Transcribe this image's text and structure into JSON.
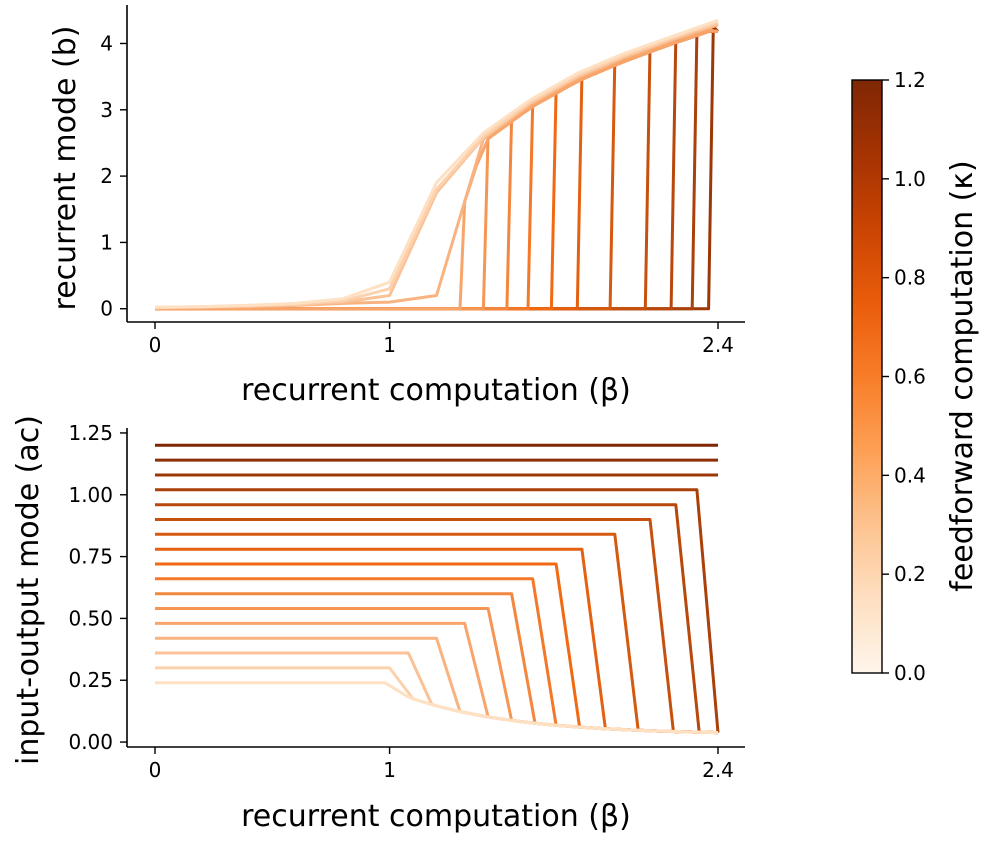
{
  "chart_data": [
    {
      "type": "line",
      "xlabel": "recurrent computation (β)",
      "ylabel": "recurrent mode (b)",
      "xlim": [
        0,
        2.4
      ],
      "ylim": [
        -0.2,
        4.55
      ],
      "xticks": [
        0,
        1,
        2.4
      ],
      "xtick_labels": [
        "0",
        "1",
        "2.4"
      ],
      "yticks": [
        0,
        1,
        2,
        3,
        4
      ],
      "ytick_labels": [
        "0",
        "1",
        "2",
        "3",
        "4"
      ],
      "grid": false,
      "x": [
        0,
        0.2,
        0.4,
        0.6,
        0.8,
        1.0,
        1.2,
        1.4,
        1.6,
        1.8,
        2.0,
        2.2,
        2.4
      ],
      "series": [
        {
          "kappa": 0.0,
          "values": [
            0.02,
            0.03,
            0.05,
            0.08,
            0.15,
            0.4,
            1.9,
            2.65,
            3.15,
            3.55,
            3.85,
            4.1,
            4.35
          ]
        },
        {
          "kappa": 0.1,
          "values": [
            0.02,
            0.03,
            0.05,
            0.07,
            0.12,
            0.3,
            1.8,
            2.6,
            3.12,
            3.52,
            3.82,
            4.08,
            4.32
          ]
        },
        {
          "kappa": 0.2,
          "values": [
            0.02,
            0.03,
            0.04,
            0.06,
            0.1,
            0.2,
            1.75,
            2.58,
            3.1,
            3.5,
            3.8,
            4.06,
            4.3
          ]
        },
        {
          "kappa": 0.3,
          "values": [
            0.01,
            0.02,
            0.03,
            0.05,
            0.08,
            0.1,
            0.2,
            2.56,
            3.08,
            3.48,
            3.78,
            4.04,
            4.28
          ]
        }
      ],
      "branches": [
        {
          "kappa": 0.4,
          "jump_x": 1.32
        },
        {
          "kappa": 0.5,
          "jump_x": 1.42
        },
        {
          "kappa": 0.6,
          "jump_x": 1.52
        },
        {
          "kappa": 0.7,
          "jump_x": 1.61
        },
        {
          "kappa": 0.8,
          "jump_x": 1.71
        },
        {
          "kappa": 0.9,
          "jump_x": 1.82
        },
        {
          "kappa": 1.0,
          "jump_x": 1.96
        },
        {
          "kappa": 1.1,
          "jump_x": 2.11
        },
        {
          "kappa": 1.2,
          "jump_x": 2.22
        },
        {
          "kappa": 1.3,
          "jump_x": 2.31
        },
        {
          "kappa": 1.4,
          "jump_x": 2.38
        }
      ]
    },
    {
      "type": "line",
      "xlabel": "recurrent computation (β)",
      "ylabel": "input-output mode (ac)",
      "xlim": [
        0,
        2.4
      ],
      "ylim": [
        -0.02,
        1.27
      ],
      "xticks": [
        0,
        1,
        2.4
      ],
      "xtick_labels": [
        "0",
        "1",
        "2.4"
      ],
      "yticks": [
        0.0,
        0.25,
        0.5,
        0.75,
        1.0,
        1.25
      ],
      "ytick_labels": [
        "0.00",
        "0.25",
        "0.50",
        "0.75",
        "1.00",
        "1.25"
      ],
      "grid": false,
      "series": [
        {
          "kappa": 0.0,
          "plateau": 0.24,
          "drop_x": 0.98
        },
        {
          "kappa": 0.1,
          "plateau": 0.3,
          "drop_x": 1.0
        },
        {
          "kappa": 0.2,
          "plateau": 0.36,
          "drop_x": 1.08
        },
        {
          "kappa": 0.3,
          "plateau": 0.42,
          "drop_x": 1.2
        },
        {
          "kappa": 0.4,
          "plateau": 0.48,
          "drop_x": 1.32
        },
        {
          "kappa": 0.5,
          "plateau": 0.54,
          "drop_x": 1.42
        },
        {
          "kappa": 0.6,
          "plateau": 0.6,
          "drop_x": 1.52
        },
        {
          "kappa": 0.7,
          "plateau": 0.66,
          "drop_x": 1.61
        },
        {
          "kappa": 0.8,
          "plateau": 0.72,
          "drop_x": 1.71
        },
        {
          "kappa": 0.9,
          "plateau": 0.78,
          "drop_x": 1.82
        },
        {
          "kappa": 1.0,
          "plateau": 0.84,
          "drop_x": 1.96
        },
        {
          "kappa": 1.1,
          "plateau": 0.9,
          "drop_x": 2.11
        },
        {
          "kappa": 1.2,
          "plateau": 0.96,
          "drop_x": 2.22
        },
        {
          "kappa": 1.3,
          "plateau": 1.02,
          "drop_x": 2.31
        },
        {
          "kappa": 1.4,
          "plateau": 1.08,
          "drop_x": 2.4
        },
        {
          "kappa": 1.5,
          "plateau": 1.14,
          "drop_x": 2.4
        },
        {
          "kappa": 1.6,
          "plateau": 1.2,
          "drop_x": 2.4
        }
      ]
    }
  ],
  "colorbar": {
    "label": "feedforward computation (κ)",
    "range": [
      0.0,
      1.2
    ],
    "ticks": [
      0.0,
      0.2,
      0.4,
      0.6,
      0.8,
      1.0,
      1.2
    ],
    "tick_labels": [
      "0.0",
      "0.2",
      "0.4",
      "0.6",
      "0.8",
      "1.0",
      "1.2"
    ],
    "colormap": "Oranges",
    "color_low": "#fee0c3",
    "color_mid": "#f16913",
    "color_high": "#7f2704"
  }
}
